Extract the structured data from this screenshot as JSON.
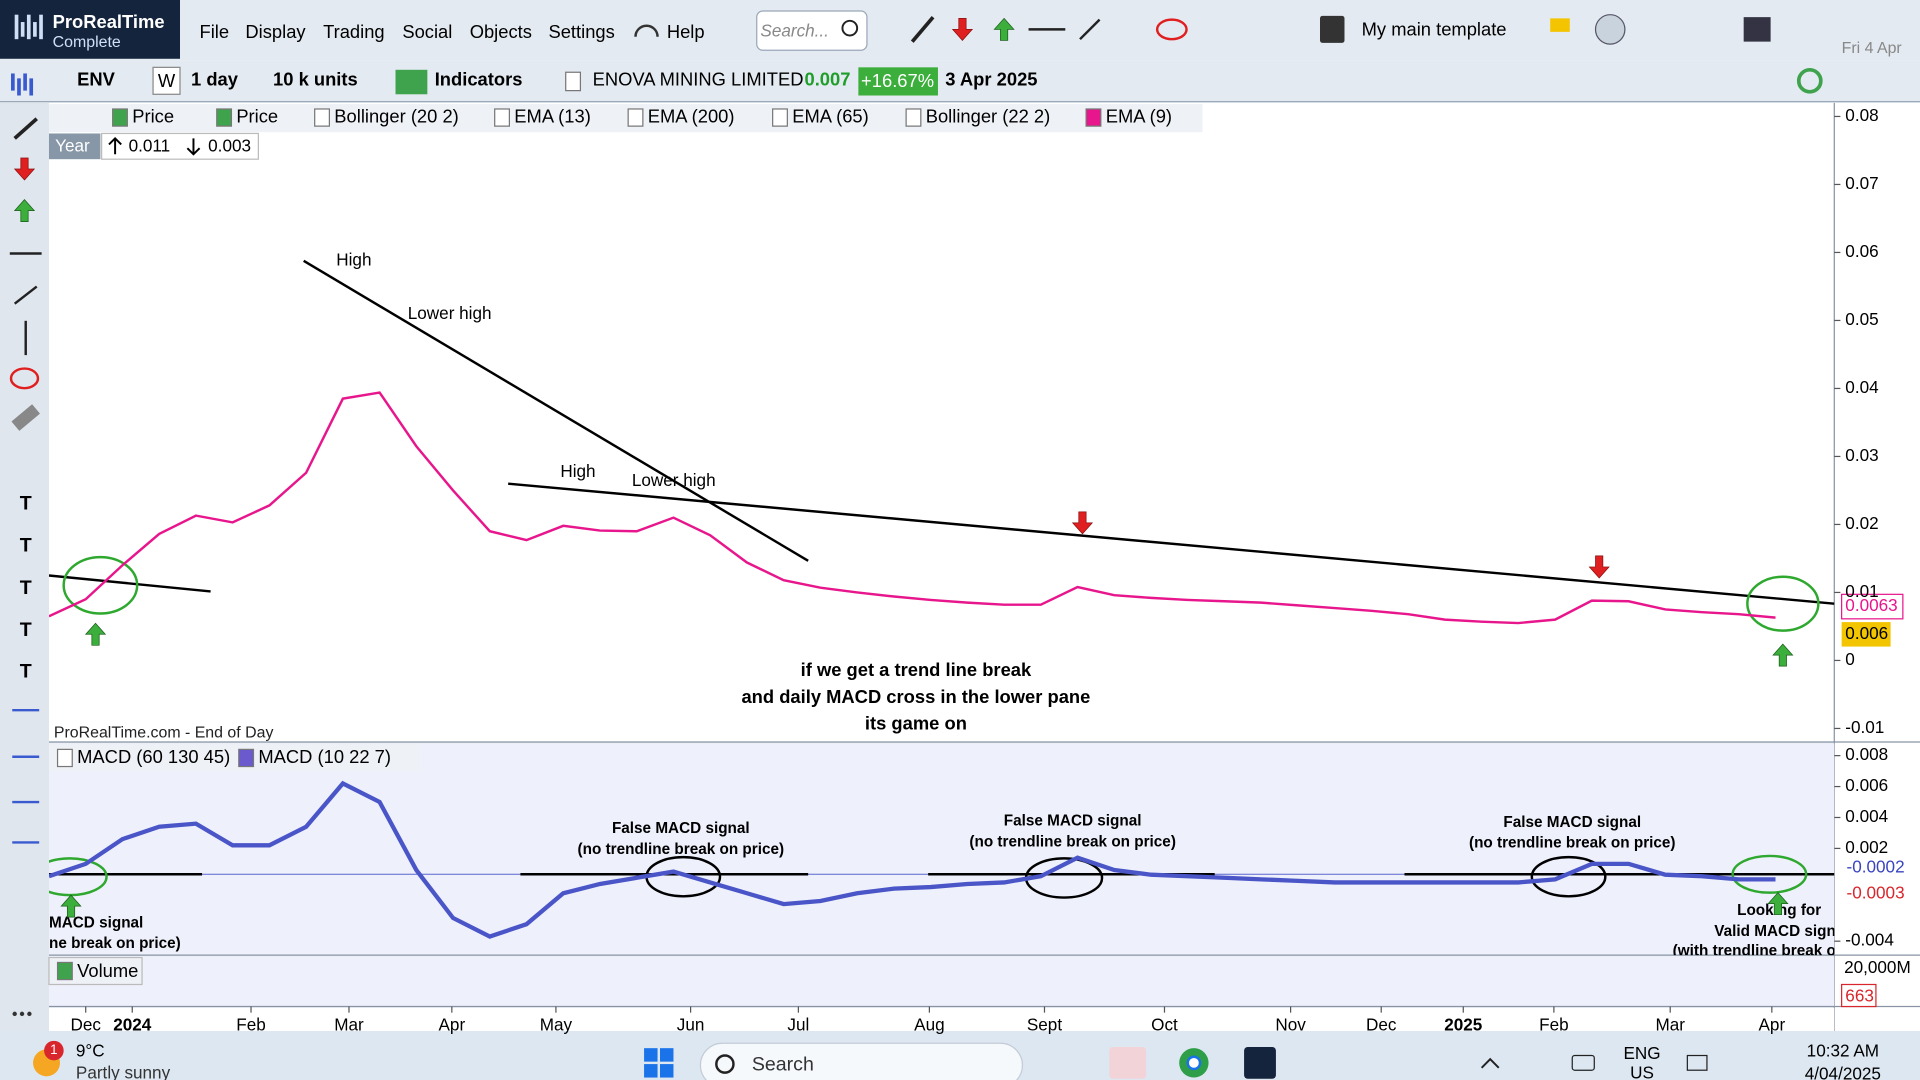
{
  "app": {
    "name": "ProRealTime",
    "edition": "Complete",
    "menu": [
      "File",
      "Display",
      "Trading",
      "Social",
      "Objects",
      "Settings",
      "Help"
    ],
    "search_placeholder": "Search...",
    "template": "My main template",
    "date": "Fri 4 Apr"
  },
  "toolbar": {
    "ticker": "ENV",
    "period_mode": "W",
    "timeframe": "1 day",
    "units": "10 k units",
    "indicators": "Indicators",
    "instrument": "ENOVA MINING LIMITED",
    "last_price": "0.007",
    "change": "+16.67%",
    "date": "3 Apr 2025"
  },
  "sidebar_tools": [
    "T",
    "T",
    "T",
    "T",
    "T"
  ],
  "price_chart": {
    "legend": [
      "Price",
      "Price",
      "Bollinger (20 2)",
      "EMA (13)",
      "EMA (200)",
      "EMA (65)",
      "Bollinger (22 2)",
      "EMA (9)"
    ],
    "period": "Year",
    "year_high": "0.011",
    "year_low": "0.003",
    "source": "ProRealTime.com - End of Day",
    "annotations": [
      "High",
      "Lower high",
      "High",
      "Lower high"
    ],
    "comment": [
      "if we get a trend line break",
      "and daily MACD cross in the lower pane",
      "its game on"
    ],
    "ylim": [
      -0.012,
      0.082
    ],
    "yticks": [
      -0.01,
      0,
      0.01,
      0.02,
      0.03,
      0.04,
      0.05,
      0.06,
      0.07,
      0.08
    ],
    "last_labels": [
      0.0063,
      0.006
    ],
    "ema": {
      "color": "#e8168c",
      "values": [
        0.0065,
        0.009,
        0.014,
        0.0186,
        0.0213,
        0.0203,
        0.0228,
        0.0276,
        0.0385,
        0.0394,
        0.0315,
        0.025,
        0.019,
        0.0177,
        0.0198,
        0.0191,
        0.019,
        0.021,
        0.0184,
        0.0144,
        0.0118,
        0.0107,
        0.01,
        0.0094,
        0.0089,
        0.0085,
        0.0082,
        0.0082,
        0.0108,
        0.0096,
        0.0092,
        0.0089,
        0.0087,
        0.0085,
        0.0081,
        0.0077,
        0.0073,
        0.0068,
        0.006,
        0.0057,
        0.0055,
        0.006,
        0.0088,
        0.0087,
        0.0075,
        0.0071,
        0.0068,
        0.0063
      ]
    }
  },
  "macd_chart": {
    "legend": [
      "MACD (60 130 45)",
      "MACD (10 22 7)"
    ],
    "annotations": [
      "False MACD signal",
      "(no trendline break on price)",
      "False MACD signal",
      "(no trendline break on price)",
      "False MACD signal",
      "(no trendline break on price)",
      "MACD signal",
      "ne break on price)",
      "Looking for",
      "Valid MACD signa",
      "(with trendline break o"
    ],
    "ylim": [
      -0.0049,
      0.0088
    ],
    "yticks": [
      0.008,
      0.006,
      0.004,
      0.002,
      -0.004
    ],
    "last_labels": [
      -0.0002,
      -0.0003
    ],
    "macd": {
      "color": "#4a55c8",
      "values": [
        0.0002,
        0.001,
        0.0026,
        0.0034,
        0.0036,
        0.0022,
        0.0022,
        0.0034,
        0.0062,
        0.005,
        0.0006,
        -0.0025,
        -0.0037,
        -0.0029,
        -0.0009,
        -0.0003,
        0.0001,
        0.0005,
        -0.0002,
        -0.0009,
        -0.0016,
        -0.0014,
        -0.0009,
        -0.0006,
        -0.0005,
        -0.0003,
        -0.0002,
        0.0002,
        0.0014,
        0.0006,
        0.0003,
        0.0002,
        0.0001,
        0,
        -0.0001,
        -0.0002,
        -0.0002,
        -0.0002,
        -0.0002,
        -0.0002,
        -0.0002,
        0,
        0.001,
        0.001,
        0.0003,
        0.0002,
        0,
        0
      ]
    }
  },
  "volume_chart": {
    "legend": "Volume",
    "max_label": "20,000M",
    "last_label": "663"
  },
  "time_axis": [
    "Dec",
    "2024",
    "Feb",
    "Mar",
    "Apr",
    "May",
    "Jun",
    "Jul",
    "Aug",
    "Sept",
    "Oct",
    "Nov",
    "Dec",
    "2025",
    "Feb",
    "Mar",
    "Apr"
  ],
  "taskbar": {
    "notifications": "1",
    "temperature": "9°C",
    "weather": "Partly sunny",
    "search": "Search",
    "language": "ENG",
    "region": "US",
    "time": "10:32 AM",
    "date": "4/04/2025"
  }
}
